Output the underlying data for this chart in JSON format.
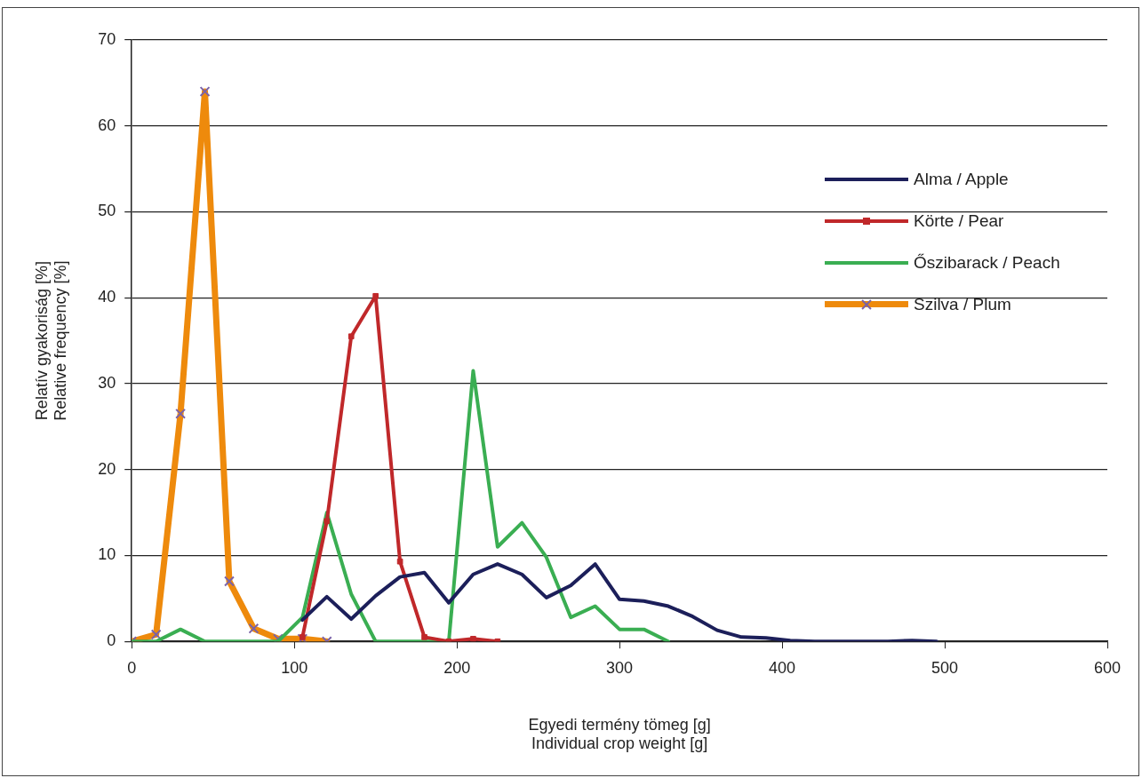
{
  "chart_data": {
    "type": "line",
    "xlabel": "Egyedi termény tömeg [g]\nIndividual crop weight [g]",
    "ylabel": "Relatív gyakoriság [%]\nRelative frequency [%]",
    "xlim": [
      0,
      600
    ],
    "xticks": [
      0,
      100,
      200,
      300,
      400,
      500,
      600
    ],
    "ylim": [
      0,
      70
    ],
    "yticks": [
      0,
      10,
      20,
      30,
      40,
      50,
      60,
      70
    ],
    "grid": "y",
    "legend": "right",
    "series": [
      {
        "name": "Alma / Apple",
        "color": "#1c1f5a",
        "marker": "none",
        "x": [
          105,
          120,
          135,
          150,
          165,
          180,
          195,
          210,
          225,
          240,
          255,
          270,
          285,
          300,
          315,
          330,
          345,
          360,
          375,
          390,
          405,
          420,
          435,
          450,
          465,
          480,
          495
        ],
        "values": [
          2.5,
          5.2,
          2.6,
          5.3,
          7.5,
          8.0,
          4.5,
          7.8,
          9.0,
          7.8,
          5.1,
          6.5,
          9.0,
          4.9,
          4.7,
          4.1,
          2.9,
          1.3,
          0.5,
          0.4,
          0.1,
          0,
          0,
          0,
          0,
          0.1,
          0
        ]
      },
      {
        "name": "Körte / Pear",
        "color": "#c0282a",
        "marker": "square",
        "x": [
          105,
          120,
          135,
          150,
          165,
          180,
          195,
          210,
          225
        ],
        "values": [
          0.5,
          14,
          35.5,
          40.2,
          9.3,
          0.5,
          0,
          0.3,
          0
        ]
      },
      {
        "name": "Őszibarack / Peach",
        "color": "#3aae52",
        "marker": "none",
        "x": [
          0,
          15,
          30,
          45,
          60,
          75,
          90,
          105,
          120,
          135,
          150,
          165,
          180,
          195,
          210,
          225,
          240,
          255,
          270,
          285,
          300,
          315,
          330
        ],
        "values": [
          0,
          0,
          1.4,
          0,
          0,
          0,
          0,
          2.8,
          15,
          5.5,
          0,
          0,
          0,
          0,
          31.5,
          11,
          13.8,
          9.8,
          2.8,
          4.1,
          1.4,
          1.4,
          0
        ]
      },
      {
        "name": "Szilva / Plum",
        "color": "#ee8a0c",
        "marker": "cross",
        "x": [
          0,
          15,
          30,
          45,
          60,
          75,
          90,
          105,
          120
        ],
        "values": [
          0,
          0.8,
          26.5,
          64,
          7,
          1.5,
          0.3,
          0.3,
          0
        ]
      }
    ]
  }
}
